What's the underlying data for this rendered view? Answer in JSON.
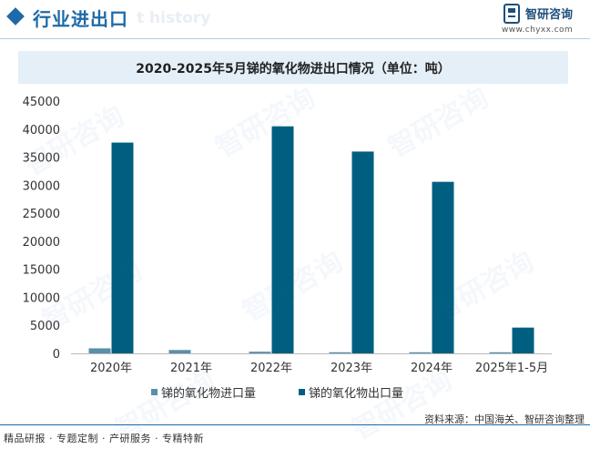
{
  "header": {
    "section_title": "行业进出口",
    "ghost_text": "t history",
    "brand_name": "智研咨询",
    "brand_url": "www.chyxx.com"
  },
  "chart_data": {
    "type": "bar",
    "title": "2020-2025年5月锑的氧化物进出口情况（单位：吨）",
    "categories": [
      "2020年",
      "2021年",
      "2022年",
      "2023年",
      "2024年",
      "2025年1-5月"
    ],
    "series": [
      {
        "name": "锑的氧化物进口量",
        "color": "#5a8fa8",
        "values": [
          900,
          600,
          300,
          200,
          200,
          200
        ]
      },
      {
        "name": "锑的氧化物出口量",
        "color": "#005f80",
        "values": [
          37600,
          0,
          40500,
          36000,
          30600,
          4600
        ]
      }
    ],
    "yticks": [
      "0",
      "5000",
      "10000",
      "15000",
      "20000",
      "25000",
      "30000",
      "35000",
      "40000",
      "45000"
    ],
    "ylim": [
      0,
      45000
    ],
    "legend_position": "bottom-left",
    "grid": false
  },
  "footer": {
    "left_text": "精品研报 · 专题定制 · 产研服务 · 专精特新",
    "source_text": "资料来源：中国海关、智研咨询整理"
  },
  "watermark_text": "智研咨询"
}
